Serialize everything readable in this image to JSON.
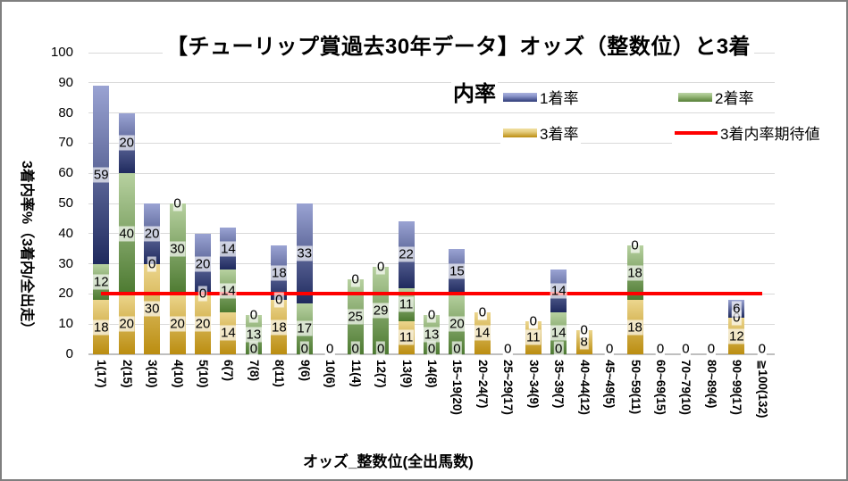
{
  "chart_data": {
    "type": "bar",
    "stacked": true,
    "title": "【チューリップ賞過去30年データ】オッズ（整数位）と3着内率",
    "title_lines": [
      "【チューリップ賞過去30年データ】オッズ（整数位）と3着",
      "内率"
    ],
    "xlabel": "オッズ_整数位(全出馬数)",
    "ylabel": "3着内率%（3着内/全出走）",
    "ylim": [
      0,
      100
    ],
    "yticks": [
      0,
      10,
      20,
      30,
      40,
      50,
      60,
      70,
      80,
      90,
      100
    ],
    "grid": true,
    "legend_position": "top-right",
    "categories": [
      "1(17)",
      "2(15)",
      "3(10)",
      "4(10)",
      "5(10)",
      "6(7)",
      "7(8)",
      "8(11)",
      "9(6)",
      "10(6)",
      "11(4)",
      "12(7)",
      "13(9)",
      "14(8)",
      "15~19(20)",
      "20~24(7)",
      "25~29(17)",
      "30~34(9)",
      "35~39(7)",
      "40~44(12)",
      "45~49(5)",
      "50~59(11)",
      "60~69(15)",
      "70~79(10)",
      "80~89(4)",
      "90~99(17)",
      "≧100(132)"
    ],
    "series": [
      {
        "name": "3着率",
        "color_light": "#ecd68e",
        "color_dark": "#bb8d10",
        "values": [
          18,
          20,
          30,
          20,
          20,
          14,
          0,
          18,
          0,
          0,
          0,
          0,
          11,
          0,
          0,
          14,
          0,
          11,
          0,
          8,
          0,
          18,
          0,
          0,
          0,
          12,
          0
        ]
      },
      {
        "name": "2着率",
        "color_light": "#b7d1a0",
        "color_dark": "#4d7a31",
        "values": [
          12,
          40,
          0,
          30,
          0,
          14,
          13,
          0,
          17,
          0,
          25,
          29,
          11,
          13,
          20,
          0,
          0,
          0,
          14,
          0,
          0,
          18,
          0,
          0,
          0,
          0,
          0
        ]
      },
      {
        "name": "1着率",
        "color_light": "#9aa3d3",
        "color_dark": "#1f2a5e",
        "values": [
          59,
          20,
          20,
          0,
          20,
          14,
          0,
          18,
          33,
          0,
          0,
          0,
          22,
          0,
          15,
          0,
          0,
          0,
          14,
          0,
          0,
          0,
          0,
          0,
          0,
          6,
          0
        ]
      }
    ],
    "expected_line": {
      "name": "3着内率期待値",
      "color": "#ff0000",
      "value": 20.3
    },
    "colors": {
      "gridline": "#d9d9d9",
      "axis": "#bfbfbf",
      "label_bg": "rgba(255,255,255,0.68)"
    }
  }
}
